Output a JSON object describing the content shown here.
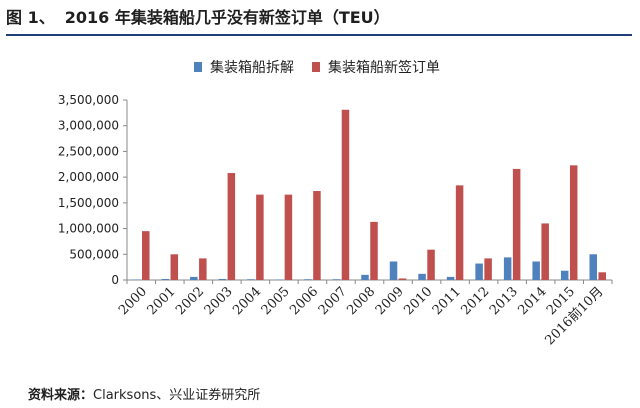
{
  "figure": {
    "number": "图 1、",
    "caption": "2016 年集装箱船几乎没有新签订单（TEU）"
  },
  "source": {
    "label": "资料来源：",
    "text": "Clarksons、兴业证券研究所"
  },
  "colors": {
    "series1": "#4f81bd",
    "series2": "#c0504d",
    "header_line": "#1f3e78"
  },
  "chart_data": {
    "type": "bar",
    "categories": [
      "2000",
      "2001",
      "2002",
      "2003",
      "2004",
      "2005",
      "2006",
      "2007",
      "2008",
      "2009",
      "2010",
      "2011",
      "2012",
      "2013",
      "2014",
      "2015",
      "2016前10月"
    ],
    "series": [
      {
        "name": "集装箱船拆解",
        "values": [
          10000,
          20000,
          60000,
          20000,
          15000,
          10000,
          15000,
          15000,
          100000,
          360000,
          120000,
          60000,
          320000,
          440000,
          360000,
          180000,
          500000
        ]
      },
      {
        "name": "集装箱船新签订单",
        "values": [
          950000,
          500000,
          420000,
          2080000,
          1660000,
          1660000,
          1730000,
          3310000,
          1130000,
          30000,
          590000,
          1840000,
          420000,
          2160000,
          1100000,
          2230000,
          150000
        ]
      }
    ],
    "ylim": [
      0,
      3500000
    ],
    "yticks": [
      0,
      500000,
      1000000,
      1500000,
      2000000,
      2500000,
      3000000,
      3500000
    ],
    "ytick_labels": [
      "0",
      "500,000",
      "1,000,000",
      "1,500,000",
      "2,000,000",
      "2,500,000",
      "3,000,000",
      "3,500,000"
    ],
    "grid": false,
    "legend": "top"
  }
}
